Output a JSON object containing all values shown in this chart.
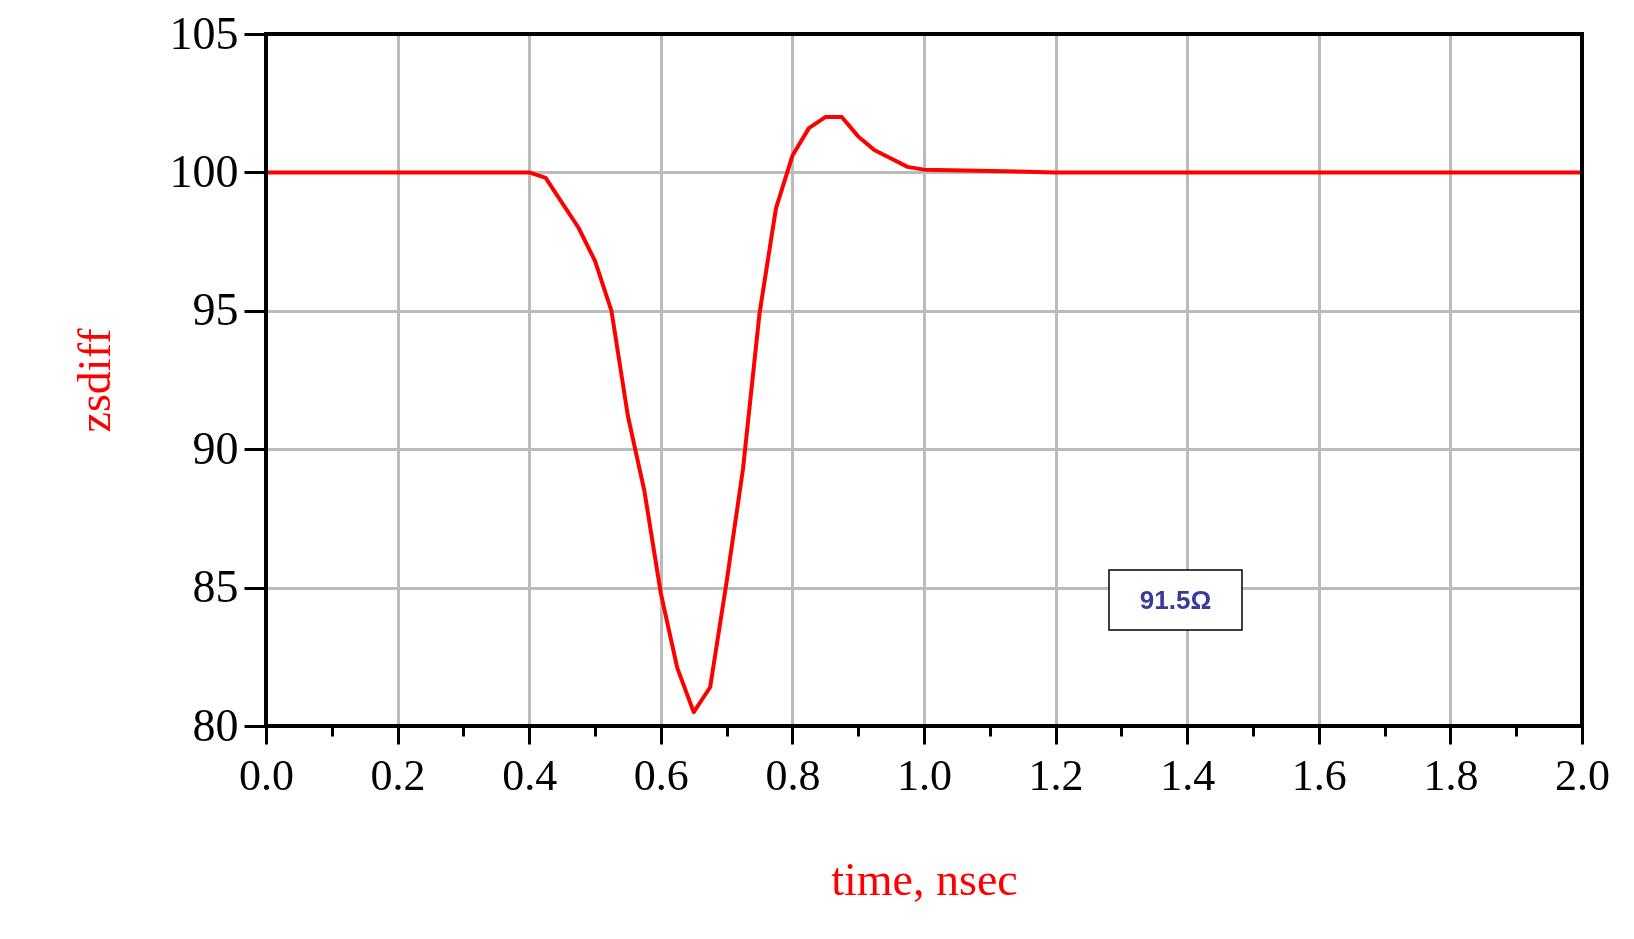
{
  "chart_data": {
    "type": "line",
    "xlabel": "time, nsec",
    "ylabel": "zsdiff",
    "x": [
      0,
      0.1,
      0.2,
      0.3,
      0.4,
      0.425,
      0.45,
      0.475,
      0.5,
      0.525,
      0.55,
      0.575,
      0.6,
      0.625,
      0.65,
      0.675,
      0.7,
      0.725,
      0.75,
      0.775,
      0.8,
      0.825,
      0.85,
      0.875,
      0.9,
      0.925,
      0.95,
      0.975,
      1.0,
      1.2,
      1.5,
      2.0
    ],
    "series": [
      {
        "color": "#ff0000",
        "values": [
          100,
          100,
          100,
          100,
          100,
          99.8,
          98.9,
          98,
          96.8,
          95,
          91.2,
          88.5,
          84.8,
          82.1,
          80.5,
          81.4,
          85.2,
          89.3,
          94.9,
          98.7,
          100.6,
          101.6,
          102,
          102,
          101.3,
          100.8,
          100.5,
          100.2,
          100.1,
          100,
          100,
          100
        ]
      }
    ],
    "xlim": [
      0,
      2.0
    ],
    "ylim": [
      80,
      105
    ],
    "xticks": [
      {
        "value": 0,
        "label": "0.0"
      },
      {
        "value": 0.1,
        "label": null
      },
      {
        "value": 0.2,
        "label": "0.2"
      },
      {
        "value": 0.3,
        "label": null
      },
      {
        "value": 0.4,
        "label": "0.4"
      },
      {
        "value": 0.5,
        "label": null
      },
      {
        "value": 0.6,
        "label": "0.6"
      },
      {
        "value": 0.7,
        "label": null
      },
      {
        "value": 0.8,
        "label": "0.8"
      },
      {
        "value": 0.9,
        "label": null
      },
      {
        "value": 1.0,
        "label": "1.0"
      },
      {
        "value": 1.1,
        "label": null
      },
      {
        "value": 1.2,
        "label": "1.2"
      },
      {
        "value": 1.3,
        "label": null
      },
      {
        "value": 1.4,
        "label": "1.4"
      },
      {
        "value": 1.5,
        "label": null
      },
      {
        "value": 1.6,
        "label": "1.6"
      },
      {
        "value": 1.7,
        "label": null
      },
      {
        "value": 1.8,
        "label": "1.8"
      },
      {
        "value": 1.9,
        "label": null
      },
      {
        "value": 2.0,
        "label": "2.0"
      }
    ],
    "yticks": [
      80,
      85,
      90,
      95,
      100,
      105
    ],
    "grid": true,
    "marker": "none",
    "line_style": "solid",
    "annotations": [
      "91.5Ω"
    ]
  }
}
